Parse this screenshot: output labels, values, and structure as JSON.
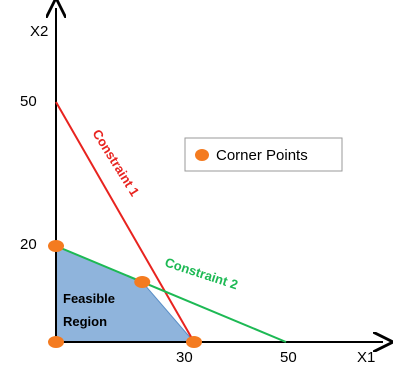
{
  "chart_data": {
    "type": "line",
    "xlabel": "X1",
    "ylabel": "X2",
    "x_ticks": [
      "30",
      "50"
    ],
    "y_ticks": [
      "50",
      "20"
    ],
    "xlim": [
      0,
      55
    ],
    "ylim": [
      0,
      58
    ],
    "series": [
      {
        "name": "Constraint 1",
        "color": "#e8231f",
        "points": [
          [
            0,
            50
          ],
          [
            30,
            0
          ]
        ]
      },
      {
        "name": "Constraint 2",
        "color": "#1db954",
        "points": [
          [
            0,
            20
          ],
          [
            50,
            0
          ]
        ]
      }
    ],
    "feasible_region": {
      "label_line1": "Feasible",
      "label_line2": "Region",
      "color": "#8fb4dc",
      "vertices": [
        [
          0,
          0
        ],
        [
          0,
          20
        ],
        [
          18.75,
          12.5
        ],
        [
          30,
          0
        ]
      ]
    },
    "corner_points": [
      [
        0,
        0
      ],
      [
        0,
        20
      ],
      [
        18.75,
        12.5
      ],
      [
        30,
        0
      ]
    ],
    "corner_point_color": "#f47b20",
    "legend": {
      "label": "Corner Points",
      "position": "right"
    }
  }
}
